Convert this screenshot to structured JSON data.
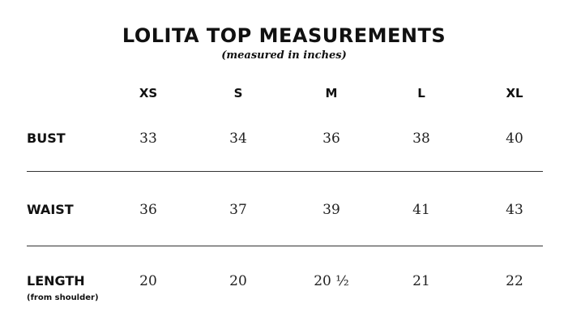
{
  "title": "LOLITA TOP MEASUREMENTS",
  "subtitle": "(measured in inches)",
  "sizes": [
    "XS",
    "S",
    "M",
    "L",
    "XL"
  ],
  "rows": [
    {
      "label": "BUST",
      "note": "",
      "values": [
        "33",
        "34",
        "36",
        "38",
        "40"
      ]
    },
    {
      "label": "WAIST",
      "note": "",
      "values": [
        "36",
        "37",
        "39",
        "41",
        "43"
      ]
    },
    {
      "label": "LENGTH",
      "note": "(from shoulder)",
      "values": [
        "20",
        "20",
        "20 ½",
        "21",
        "22"
      ]
    }
  ]
}
